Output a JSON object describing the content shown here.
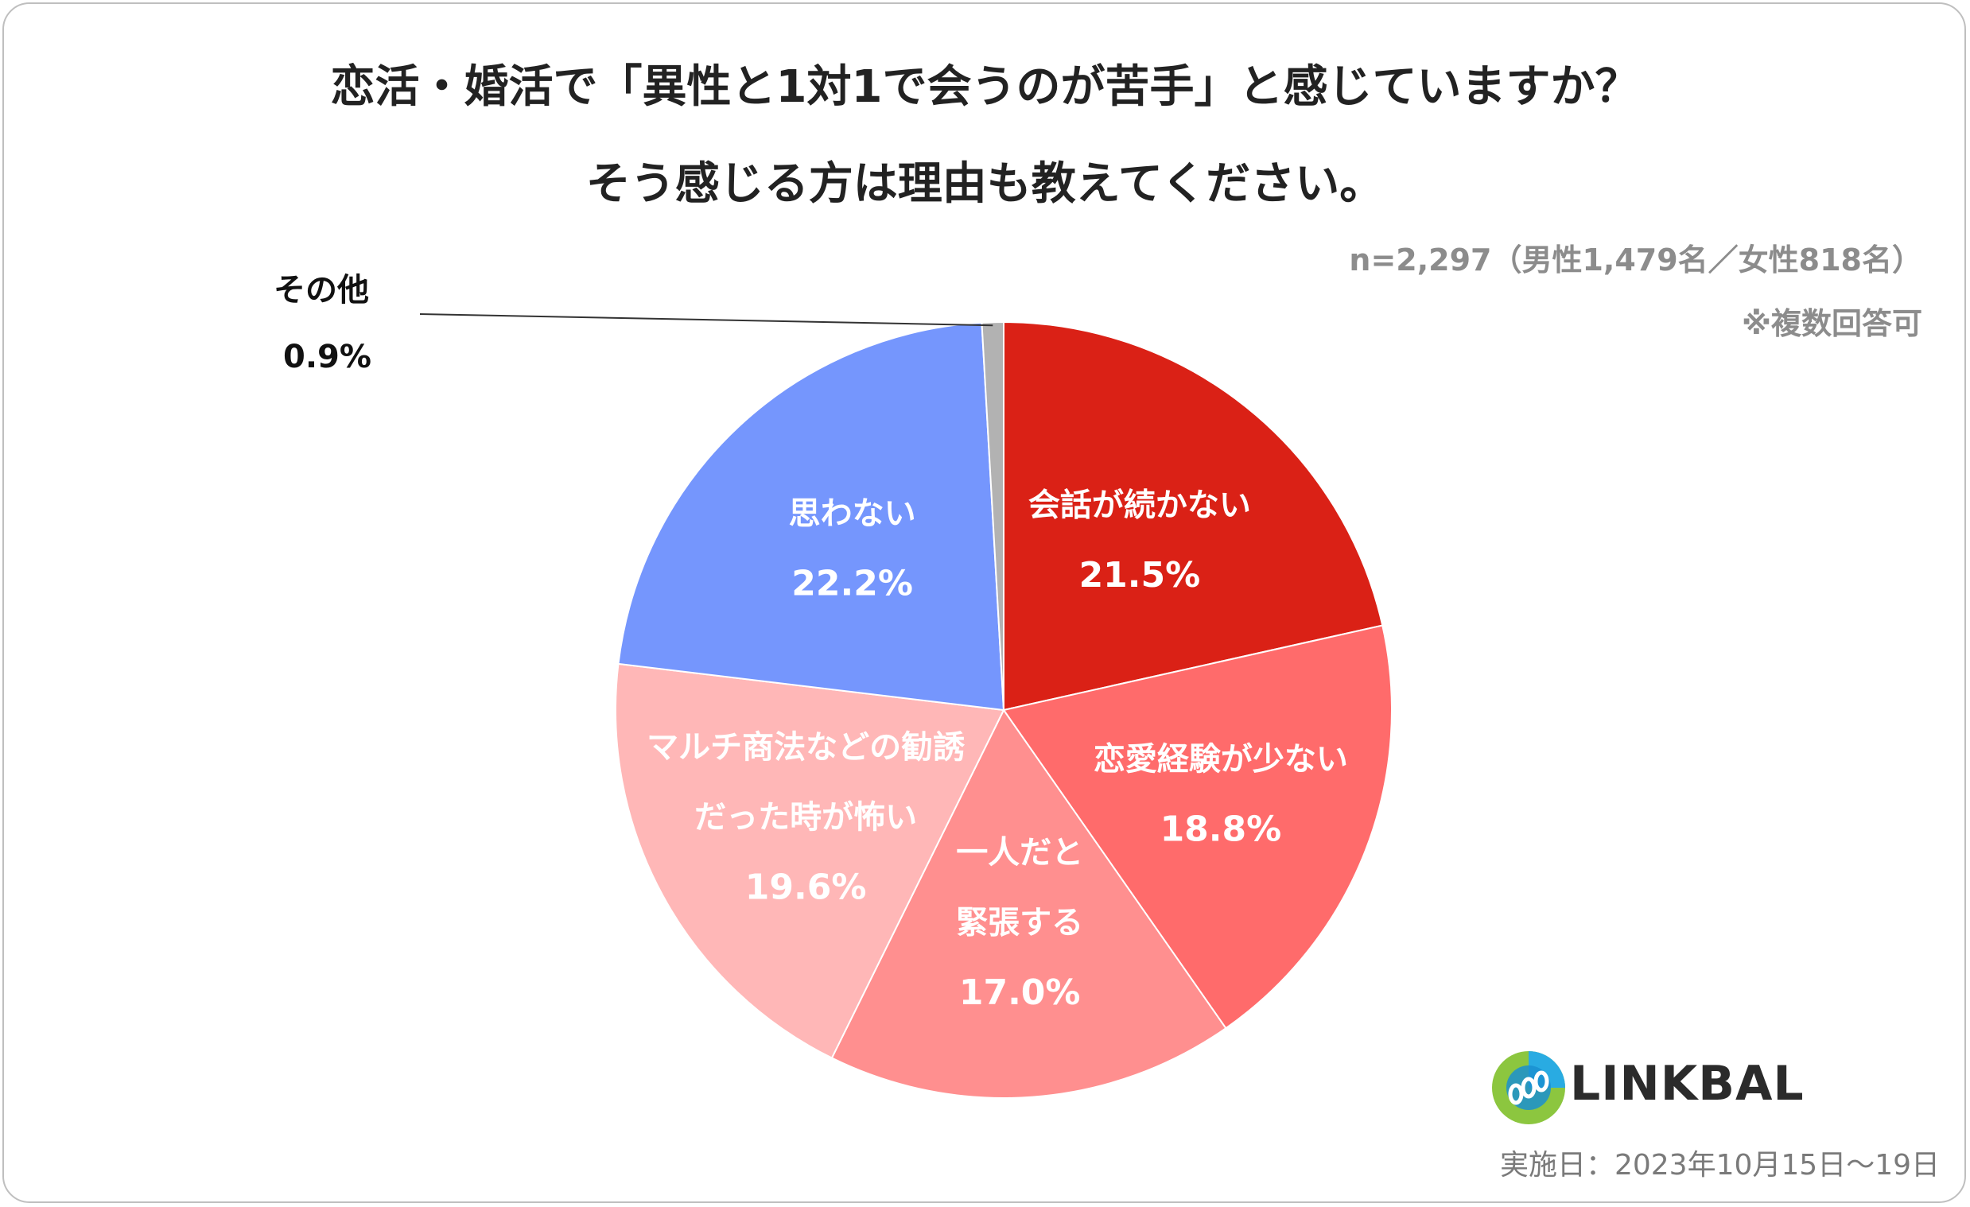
{
  "title": {
    "line1": "恋活・婚活で「異性と1対1で会うのが苦手」と感じていますか？",
    "line2": "そう感じる方は理由も教えてください。"
  },
  "sample": "n=2,297（男性1,479名／女性818名）",
  "note": "※複数回答可",
  "brand": "LINKBAL",
  "survey_date": "実施日：2023年10月15日〜19日",
  "chart_data": {
    "type": "pie",
    "title": "恋活・婚活で「異性と1対1で会うのが苦手」と感じていますか？ そう感じる方は理由も教えてください。",
    "slices": [
      {
        "lines": [
          "会話が続かない"
        ],
        "value_label": "21.5%",
        "value": 21.5,
        "color": "#da2116"
      },
      {
        "lines": [
          "恋愛経験が少ない"
        ],
        "value_label": "18.8%",
        "value": 18.8,
        "color": "#ff6b6b"
      },
      {
        "lines": [
          "一人だと",
          "緊張する"
        ],
        "value_label": "17.0%",
        "value": 17.0,
        "color": "#ff8f8f"
      },
      {
        "lines": [
          "マルチ商法などの勧誘",
          "だった時が怖い"
        ],
        "value_label": "19.6%",
        "value": 19.6,
        "color": "#ffb7b7"
      },
      {
        "lines": [
          "思わない"
        ],
        "value_label": "22.2%",
        "value": 22.2,
        "color": "#7596fd"
      },
      {
        "lines": [
          "その他"
        ],
        "value_label": "0.9%",
        "value": 0.9,
        "color": "#b2b2b2",
        "outside": true
      }
    ]
  }
}
